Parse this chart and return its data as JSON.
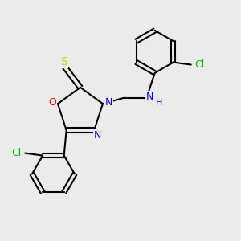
{
  "bg_color": "#ebebeb",
  "bond_color": "#000000",
  "atom_colors": {
    "O": "#ff0000",
    "N": "#0000ff",
    "S": "#cccc00",
    "Cl": "#00bb00",
    "C": "#000000",
    "H": "#0000ff"
  },
  "figsize": [
    3.0,
    3.0
  ],
  "dpi": 100
}
